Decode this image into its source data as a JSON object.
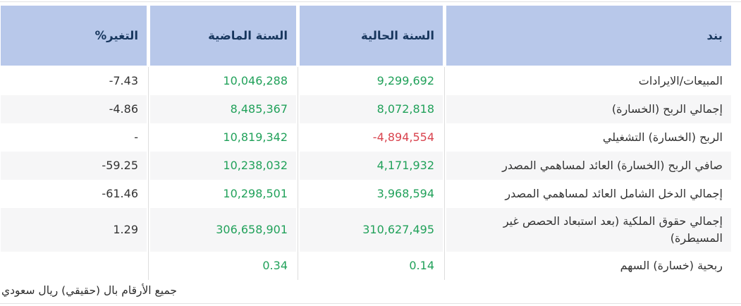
{
  "colors": {
    "header_bg": "#b8c8ea",
    "header_text": "#17365d",
    "positive_value": "#21a15a",
    "negative_value": "#d9434e"
  },
  "table": {
    "headers": {
      "item": "بند",
      "current_year": "السنة الحالية",
      "previous_year": "السنة الماضية",
      "change": "التغير%"
    },
    "rows": [
      {
        "item": "المبيعات/الايرادات",
        "current": "9,299,692",
        "current_trend": "positive",
        "previous": "10,046,288",
        "change": "7.43-"
      },
      {
        "item": "إجمالي الربح (الخسارة)",
        "current": "8,072,818",
        "current_trend": "positive",
        "previous": "8,485,367",
        "change": "4.86-"
      },
      {
        "item": "الربح (الخسارة) التشغيلي",
        "current": "4,894,554-",
        "current_trend": "negative",
        "previous": "10,819,342",
        "change": "-"
      },
      {
        "item": "صافي الربح (الخسارة) العائد لمساهمي المصدر",
        "current": "4,171,932",
        "current_trend": "positive",
        "previous": "10,238,032",
        "change": "59.25-"
      },
      {
        "item": "إجمالي الدخل الشامل العائد لمساهمي المصدر",
        "current": "3,968,594",
        "current_trend": "positive",
        "previous": "10,298,501",
        "change": "61.46-"
      },
      {
        "item": "إجمالي حقوق الملكية (بعد استبعاد الحصص غير المسيطرة)",
        "current": "310,627,495",
        "current_trend": "positive",
        "previous": "306,658,901",
        "change": "1.29"
      },
      {
        "item": "ربحية (خسارة) السهم",
        "current": "0.14",
        "current_trend": "positive",
        "previous": "0.34",
        "change": ""
      }
    ],
    "footer_note": "جميع الأرقام بال (حقيقي) ريال سعودي"
  }
}
